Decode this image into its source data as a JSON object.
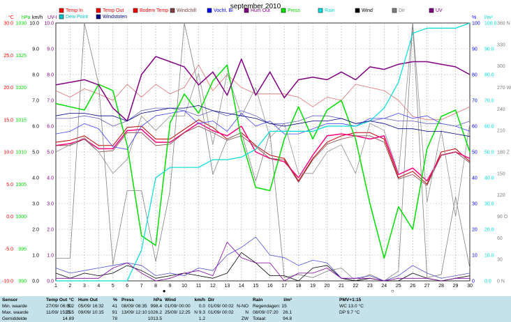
{
  "chart_data": {
    "type": "line",
    "title": "september 2010",
    "x": [
      1,
      2,
      3,
      4,
      5,
      6,
      7,
      8,
      9,
      10,
      11,
      12,
      13,
      14,
      15,
      16,
      17,
      18,
      19,
      20,
      21,
      22,
      23,
      24,
      25,
      26,
      27,
      28,
      29,
      30
    ],
    "xlim": [
      1,
      30
    ],
    "axes": {
      "temp": {
        "unit": "°C",
        "ticks": [
          "30.0",
          "25.0",
          "20.0",
          "15.0",
          "10.0",
          "5.0",
          "0.0",
          "-5.0",
          "-10.0"
        ],
        "range": [
          -10,
          30
        ],
        "color": "#ff0000"
      },
      "wind": {
        "unit": "km/h",
        "ticks": [
          "10.0",
          "9.0",
          "8.0",
          "7.0",
          "6.0",
          "5.0",
          "4.0",
          "3.0",
          "2.0",
          "1.0",
          "0.0"
        ],
        "range": [
          0,
          10
        ],
        "color": "#000000"
      },
      "press": {
        "unit": "hPa",
        "ticks": [
          "1030",
          "1025",
          "1020",
          "1015",
          "1010",
          "1005",
          "1000",
          "995",
          "990"
        ],
        "range": [
          990,
          1030
        ],
        "color": "#00dd00"
      },
      "uv": {
        "unit": "UV-I",
        "ticks": [
          "10.0",
          "9.0",
          "8.0",
          "7.0",
          "6.0",
          "5.0",
          "4.0",
          "3.0",
          "2.0",
          "1.0",
          "0.0"
        ],
        "range": [
          0,
          10
        ],
        "color": "#800080"
      },
      "hum": {
        "unit": "%",
        "ticks": [
          "100",
          "90",
          "80",
          "70",
          "60",
          "50",
          "40",
          "30",
          "20",
          "10",
          "0"
        ],
        "range": [
          0,
          100
        ],
        "color": "#0000ff"
      },
      "rain": {
        "unit": "l/m²",
        "ticks": [
          "100.0",
          "90.0",
          "80.0",
          "70.0",
          "60.0",
          "50.0",
          "40.0",
          "30.0",
          "20.0",
          "10.0",
          "0.0"
        ],
        "range": [
          0,
          100
        ],
        "color": "#00dddd"
      },
      "dir": {
        "ticks": [
          "360 N",
          "330",
          "300",
          "270 W",
          "240",
          "210",
          "180 Z",
          "150",
          "120",
          "90 O",
          "60",
          "30",
          "0 N"
        ],
        "range": [
          0,
          360
        ],
        "color": "#808080"
      }
    },
    "legend": [
      {
        "name": "Temp In",
        "color": "#ff0000"
      },
      {
        "name": "Temp Out",
        "color": "#ff0000"
      },
      {
        "name": "Bodem Temp",
        "color": "#ff0000"
      },
      {
        "name": "Windchill",
        "color": "#804040"
      },
      {
        "name": "Vocht. Bi",
        "color": "#0000ff"
      },
      {
        "name": "Hum Out",
        "color": "#800080"
      },
      {
        "name": "Press",
        "color": "#00dd00"
      },
      {
        "name": "Rain",
        "color": "#00dddd"
      },
      {
        "name": "Wind",
        "color": "#000000"
      },
      {
        "name": "Dir",
        "color": "#808080"
      },
      {
        "name": "UV",
        "color": "#800080"
      },
      {
        "name": "Dew Point",
        "color": "#00c0c0"
      },
      {
        "name": "Windstoten",
        "color": "#000080"
      }
    ],
    "series": [
      {
        "key": "temp_in",
        "axis": "temp",
        "color": "#e07070",
        "width": 0.8,
        "values": [
          19.5,
          18.5,
          19.8,
          19.0,
          18.0,
          20.5,
          18.5,
          20.5,
          19.0,
          20.0,
          23.5,
          19.5,
          22.0,
          20.0,
          19.0,
          19.0,
          19.0,
          18.5,
          17.0,
          18.5,
          18.0,
          20.5,
          20.0,
          19.5,
          18.0,
          15.5,
          15.0,
          15.0,
          16.0,
          17.0
        ]
      },
      {
        "key": "temp_out",
        "axis": "temp",
        "color": "#c00000",
        "width": 1,
        "values": [
          11.5,
          11.8,
          12.5,
          11.0,
          11.0,
          13.8,
          14.0,
          12.0,
          12.0,
          13.5,
          15.0,
          13.8,
          12.0,
          13.0,
          11.0,
          9.5,
          9.0,
          5.5,
          9.0,
          11.5,
          12.5,
          13.0,
          13.0,
          12.0,
          6.0,
          7.0,
          5.0,
          10.0,
          10.5,
          8.5
        ]
      },
      {
        "key": "dew_point",
        "axis": "temp",
        "color": "#ff0080",
        "width": 1.5,
        "values": [
          11.0,
          11.3,
          12.0,
          10.5,
          10.5,
          13.3,
          13.5,
          11.5,
          11.5,
          13.0,
          14.5,
          13.3,
          12.5,
          14.0,
          10.0,
          9.0,
          8.5,
          6.0,
          9.5,
          12.5,
          12.8,
          12.5,
          12.0,
          12.5,
          6.5,
          7.5,
          5.5,
          9.5,
          10.0,
          9.0
        ]
      },
      {
        "key": "windchill",
        "axis": "temp",
        "color": "#804040",
        "width": 0.8,
        "values": [
          11.0,
          11.0,
          12.0,
          10.0,
          10.2,
          13.0,
          13.0,
          11.0,
          11.2,
          13.0,
          14.0,
          13.0,
          11.8,
          12.5,
          10.8,
          9.0,
          8.8,
          5.3,
          8.8,
          11.2,
          12.0,
          12.5,
          12.5,
          11.5,
          5.8,
          6.5,
          4.8,
          9.5,
          10.0,
          8.3
        ]
      },
      {
        "key": "dir_line",
        "axis": "dir",
        "color": "#909090",
        "width": 0.8,
        "values": [
          180,
          190,
          200,
          180,
          150,
          170,
          230,
          210,
          230,
          230,
          290,
          190,
          290,
          230,
          270,
          200,
          220,
          150,
          150,
          180,
          190,
          150,
          220,
          210,
          150,
          360,
          110,
          210,
          90,
          220
        ]
      },
      {
        "key": "wind_max",
        "axis": "temp",
        "color": "#808080",
        "width": 0.8,
        "values": [
          -6.5,
          -6.5,
          30.0,
          20.5,
          -7.5,
          4.0,
          4.0,
          -7.0,
          4.0,
          30.0,
          20.0,
          6.5,
          12.0,
          13.0,
          5.5,
          13.0,
          -9.5,
          -9.0,
          -9.5,
          -8.5,
          -8.0,
          -10.0,
          -9.0,
          -10.0,
          -8.5,
          30.0,
          -9.5,
          -9.0,
          3.0,
          -8.0
        ]
      },
      {
        "key": "hum_out",
        "axis": "hum",
        "color": "#4040ff",
        "width": 0.8,
        "values": [
          57,
          58,
          61,
          59,
          52,
          51,
          60,
          64,
          65,
          66,
          61,
          62,
          58,
          65,
          60,
          62,
          57,
          57,
          59,
          61,
          61,
          60,
          63,
          63,
          65,
          63,
          64,
          61,
          60,
          58
        ]
      },
      {
        "key": "hum_in",
        "axis": "hum",
        "color": "#6060c0",
        "width": 0.8,
        "values": [
          63,
          63,
          64,
          63,
          60,
          62,
          66,
          67,
          67,
          66,
          64,
          66,
          64,
          66,
          64,
          61,
          61,
          62,
          64,
          64,
          63,
          61,
          62,
          63,
          62,
          62,
          61,
          61,
          60,
          62
        ]
      },
      {
        "key": "press",
        "axis": "press",
        "color": "#00dd00",
        "width": 1.5,
        "values": [
          1017.5,
          1017.0,
          1016.5,
          1020.5,
          1019.5,
          1011.0,
          997.0,
          995.5,
          1014.5,
          1019.0,
          1016.0,
          1021.0,
          1023.5,
          1012.0,
          1004.5,
          1004.0,
          1012.0,
          1017.0,
          1012.0,
          1016.5,
          1018.0,
          1012.0,
          1002.0,
          993.5,
          1001.5,
          998.0,
          1010.5,
          1015.5,
          1016.5,
          1010.0
        ]
      },
      {
        "key": "uv",
        "axis": "uv",
        "color": "#800080",
        "width": 1.5,
        "values": [
          7.6,
          7.7,
          7.8,
          7.6,
          6.7,
          6.2,
          8.0,
          8.7,
          8.5,
          8.3,
          7.6,
          8.1,
          7.2,
          8.6,
          7.2,
          8.1,
          7.1,
          7.8,
          7.9,
          7.8,
          8.1,
          7.8,
          8.3,
          8.2,
          8.4,
          8.5,
          8.5,
          8.4,
          8.3,
          8.0
        ]
      },
      {
        "key": "rain",
        "axis": "rain",
        "color": "#00dddd",
        "width": 1.2,
        "values": [
          0,
          0,
          0,
          0,
          0,
          0,
          12,
          40,
          44,
          44,
          44,
          47,
          47,
          48,
          51,
          58,
          58,
          58,
          58,
          60,
          60,
          60,
          62,
          67,
          77,
          96,
          98,
          98,
          98,
          100
        ]
      },
      {
        "key": "windstoten",
        "axis": "uv",
        "color": "#000080",
        "width": 0.8,
        "values": [
          6.4,
          6.5,
          6.5,
          6.4,
          6.4,
          6.2,
          6.5,
          6.6,
          6.7,
          6.7,
          6.8,
          6.6,
          6.5,
          6.4,
          6.3,
          6.1,
          6.0,
          6.1,
          6.2,
          6.2,
          6.3,
          6.1,
          6.2,
          6.1,
          5.9,
          5.9,
          5.8,
          5.8,
          5.7,
          5.6
        ]
      },
      {
        "key": "wind",
        "axis": "wind",
        "color": "#000000",
        "width": 0.8,
        "values": [
          0.3,
          0.1,
          0.3,
          0.2,
          0.3,
          0.6,
          0.4,
          0.1,
          0.2,
          0.3,
          0.2,
          0.1,
          0.3,
          1.1,
          0.7,
          0.2,
          0.2,
          0.0,
          0.5,
          0.6,
          0.1,
          0.0,
          0.1,
          0.0,
          0.0,
          0.3,
          0.1,
          0.0,
          0.1,
          0.2
        ]
      },
      {
        "key": "gust",
        "axis": "wind",
        "color": "#5050d0",
        "width": 0.8,
        "values": [
          0.5,
          0.3,
          0.4,
          0.5,
          0.6,
          0.7,
          0.6,
          0.2,
          0.3,
          0.2,
          0.5,
          0.4,
          1.0,
          1.3,
          1.7,
          1.0,
          0.9,
          0.6,
          0.8,
          0.7,
          0.1,
          0.1,
          0.2,
          0.0,
          0.2,
          0.6,
          0.3,
          0.1,
          0.2,
          0.3
        ]
      },
      {
        "key": "uv_low",
        "axis": "uv",
        "color": "#8000a0",
        "width": 0.8,
        "values": [
          0.1,
          0.1,
          0.1,
          0.1,
          0.5,
          0.7,
          0.3,
          0.0,
          0.1,
          0.3,
          0.4,
          0.2,
          1.5,
          0.9,
          0.7,
          0.7,
          0.0,
          0.3,
          0.3,
          0.5,
          0.1,
          0.1,
          0.1,
          0.0,
          0.1,
          0.1,
          0.1,
          0.0,
          0.1,
          0.1
        ]
      }
    ],
    "markers": [
      {
        "x": 8,
        "label": "●"
      },
      {
        "x": 24,
        "label": "○"
      }
    ]
  },
  "panel": {
    "sensor": {
      "header": "Sensor",
      "rows": [
        "Min. waarde",
        "Max. waarde",
        "Gemiddelde"
      ]
    },
    "temp": {
      "header": "Temp Out",
      "unit": "°C",
      "rows": [
        [
          "27/09/ 06:00",
          "5.2"
        ],
        [
          "11/09/ 15:25",
          "25.5"
        ],
        [
          "",
          "14.89"
        ]
      ]
    },
    "hum": {
      "header": "Hum Out",
      "unit": "%",
      "rows": [
        [
          "05/09/ 16:32",
          "41"
        ],
        [
          "09/09/ 10:15",
          "91"
        ],
        [
          "",
          "78"
        ]
      ]
    },
    "press": {
      "header": "Press",
      "unit": "hPa",
      "rows": [
        [
          "08/09/ 08:35",
          "998.4"
        ],
        [
          "13/09/ 12:10",
          "1026.2"
        ],
        [
          "",
          "1013.5"
        ]
      ]
    },
    "wind": {
      "header": "Wind",
      "unit": "km/h",
      "rows": [
        [
          "01/09/ 00:00",
          "0.0"
        ],
        [
          "25/09/ 12:25",
          "N 9.3"
        ],
        [
          "",
          "1.2"
        ]
      ]
    },
    "dir": {
      "header": "Dir",
      "rows": [
        [
          "01/09/ 00:02",
          "N-NO"
        ],
        [
          "01/09/ 00:02",
          "N"
        ],
        [
          "",
          "ZW"
        ]
      ]
    },
    "rain": {
      "header": "Rain",
      "unit": "l/m²",
      "rows": [
        [
          "Regendagen: 15",
          ""
        ],
        [
          "08/09/ 07:20",
          "26.1"
        ],
        [
          "Totaal:",
          "94.8"
        ]
      ]
    },
    "pmv": {
      "header": "PMV+1:15",
      "rows": [
        "WC 13.0 °C",
        "DP 9.7 °C"
      ]
    }
  }
}
